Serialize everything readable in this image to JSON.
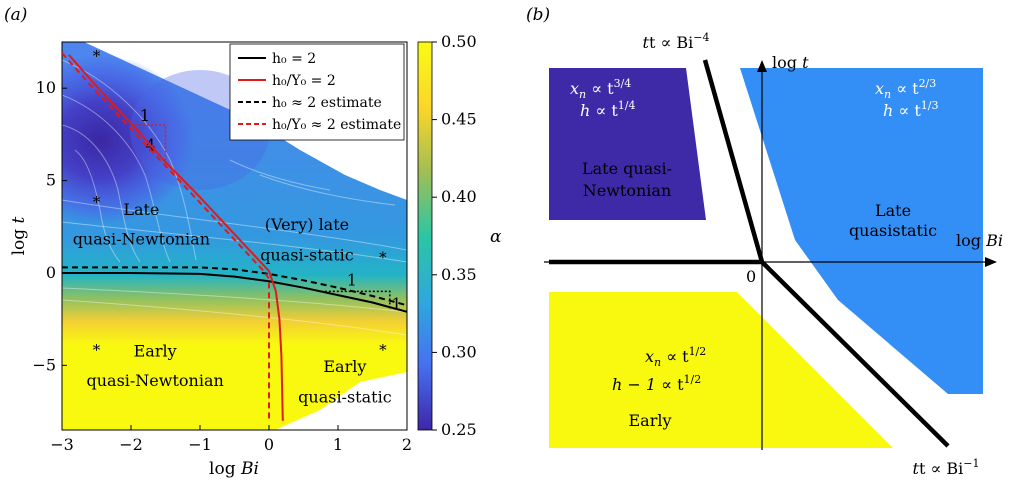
{
  "panel_a_label": "(a)",
  "panel_b_label": "(b)",
  "chart_data": [
    {
      "type": "heatmap",
      "panel": "(a)",
      "xlabel": "log Bi",
      "ylabel": "log t",
      "xlim": [
        -3,
        2
      ],
      "ylim": [
        -8.5,
        12.5
      ],
      "xticks": [
        -3,
        -2,
        -1,
        0,
        1,
        2
      ],
      "yticks": [
        -5,
        0,
        5,
        10
      ],
      "colorbar": {
        "label": "α",
        "ticks": [
          0.25,
          0.3,
          0.35,
          0.4,
          0.45,
          0.5
        ],
        "tick_labels": [
          "0.25",
          "0.30",
          "0.35",
          "0.40",
          "0.45",
          "0.50"
        ],
        "range": [
          0.25,
          0.5
        ],
        "colors": [
          "#3e26a8",
          "#4771f0",
          "#2ea8de",
          "#2cc6a3",
          "#a4be53",
          "#fbd62a",
          "#f9fb15"
        ]
      },
      "legend": {
        "position": "top-right",
        "entries": [
          {
            "label": "h₀ = 2",
            "color": "#000000",
            "dashed": false
          },
          {
            "label": "h₀/Y₀ = 2",
            "color": "#e01a1a",
            "dashed": false
          },
          {
            "label": "h₀ ≈ 2 estimate",
            "color": "#000000",
            "dashed": true
          },
          {
            "label": "h₀/Y₀ ≈ 2 estimate",
            "color": "#e01a1a",
            "dashed": true
          }
        ]
      },
      "series": [
        {
          "name": "h₀ = 2",
          "color": "#000000",
          "dashed": false,
          "x": [
            -3,
            -2,
            -1,
            -0.5,
            0,
            0.5,
            1,
            1.5,
            2
          ],
          "y": [
            0,
            0,
            -0.05,
            -0.2,
            -0.45,
            -0.8,
            -1.2,
            -1.6,
            -2.1
          ]
        },
        {
          "name": "h₀/Y₀ = 2",
          "color": "#e01a1a",
          "dashed": false,
          "x": [
            -2.9,
            -2.5,
            -2,
            -1.5,
            -1,
            -0.5,
            -0.2,
            0,
            0.1,
            0.15,
            0.18,
            0.2
          ],
          "y": [
            11.8,
            10.1,
            8.1,
            6.0,
            4.1,
            2.1,
            0.9,
            0.1,
            -1.0,
            -2.5,
            -4.5,
            -8
          ]
        },
        {
          "name": "h₀ ≈ 2 estimate",
          "color": "#000000",
          "dashed": true,
          "x": [
            -3,
            -1.5,
            -1,
            -0.5,
            0,
            0.5,
            1,
            1.5,
            2
          ],
          "y": [
            0.3,
            0.3,
            0.3,
            0.2,
            -0.05,
            -0.4,
            -0.8,
            -1.25,
            -1.75
          ]
        },
        {
          "name": "h₀/Y₀ ≈ 2 estimate",
          "color": "#e01a1a",
          "dashed": true,
          "x": [
            -3,
            -2.5,
            -2,
            -1.5,
            -1,
            -0.5,
            -0.1,
            0,
            0,
            0
          ],
          "y": [
            11.9,
            9.8,
            7.8,
            5.8,
            3.8,
            1.8,
            0.2,
            -0.3,
            -4,
            -8
          ]
        }
      ],
      "markers": {
        "symbol": "*",
        "points": [
          [
            -2.5,
            11.9
          ],
          [
            -2.5,
            4
          ],
          [
            -2.5,
            -4
          ],
          [
            1.65,
            1
          ],
          [
            1.65,
            -4
          ]
        ]
      },
      "slope_triangles": [
        {
          "run_label": "1",
          "rise_label": "4",
          "corners": [
            [
              -2,
              8
            ],
            [
              -1.5,
              8
            ],
            [
              -1.5,
              6
            ]
          ],
          "label_run_at": [
            -1.8,
            8.5
          ],
          "label_rise_at": [
            -1.72,
            6.9
          ]
        },
        {
          "run_label": "1",
          "rise_label": "1",
          "corners": [
            [
              0.75,
              -1
            ],
            [
              1.75,
              -1
            ],
            [
              1.75,
              -2
            ]
          ],
          "label_run_at": [
            1.2,
            -0.4
          ],
          "label_rise_at": [
            1.85,
            -1.7
          ]
        }
      ],
      "annotations": [
        {
          "text": "Late",
          "x": -1.85,
          "y": 3.4
        },
        {
          "text": "quasi-Newtonian",
          "x": -1.85,
          "y": 1.8
        },
        {
          "text": "(Very) late",
          "x": 0.55,
          "y": 2.6
        },
        {
          "text": "quasi-static",
          "x": 0.55,
          "y": 0.95
        },
        {
          "text": "Early",
          "x": -1.65,
          "y": -4.25
        },
        {
          "text": "quasi-Newtonian",
          "x": -1.65,
          "y": -5.85
        },
        {
          "text": "Early",
          "x": 1.1,
          "y": -5.1
        },
        {
          "text": "quasi-static",
          "x": 1.1,
          "y": -6.75
        }
      ]
    },
    {
      "type": "diagram",
      "panel": "(b)",
      "xlabel": "log Bi",
      "ylabel": "log t",
      "origin_label": "0",
      "boundary_labels": [
        "t ∝ Bi",
        "t ∝ Bi"
      ],
      "boundary_exponents": [
        "−4",
        "−1"
      ],
      "regions": [
        {
          "name": "Late quasi-Newtonian",
          "color": "#3e2aa6",
          "text_color": "#ffffff",
          "lines": [
            "Late quasi-",
            "Newtonian"
          ],
          "scalings": [
            {
              "base": "x",
              "sub": "n",
              "mid": " ∝ t",
              "exp": "3/4"
            },
            {
              "base": "h",
              "sub": "",
              "mid": " ∝ t",
              "exp": "1/4"
            }
          ]
        },
        {
          "name": "Late quasistatic",
          "color": "#338ef5",
          "text_color": "#ffffff",
          "lines": [
            "Late",
            "quasistatic"
          ],
          "scalings": [
            {
              "base": "x",
              "sub": "n",
              "mid": " ∝ t",
              "exp": "2/3"
            },
            {
              "base": "h",
              "sub": "",
              "mid": " ∝ t",
              "exp": "1/3"
            }
          ]
        },
        {
          "name": "Early",
          "color": "#f9f90f",
          "text_color": "#000000",
          "lines": [
            "Early"
          ],
          "scalings": [
            {
              "base": "x",
              "sub": "n",
              "mid": " ∝ t",
              "exp": "1/2"
            },
            {
              "base": "h − 1",
              "sub": "",
              "mid": " ∝ t",
              "exp": "1/2"
            }
          ]
        }
      ]
    }
  ]
}
